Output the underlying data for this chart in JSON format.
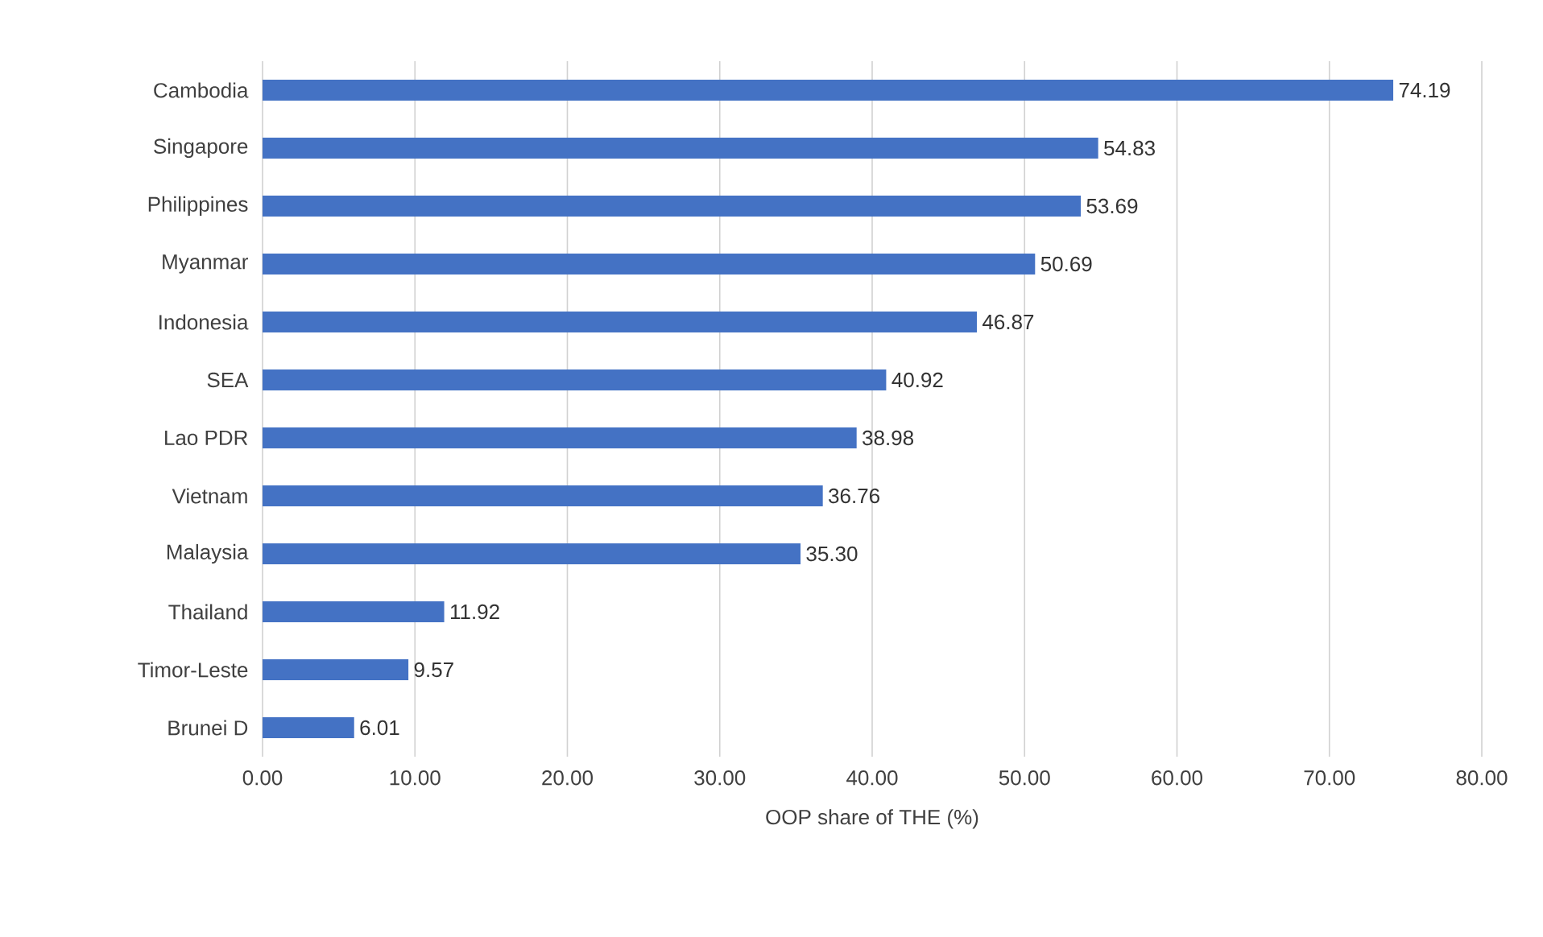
{
  "chart_data": {
    "type": "bar",
    "orientation": "horizontal",
    "xlabel": "OOP share of THE (%)",
    "categories": [
      "Cambodia",
      "Singapore",
      "Philippines",
      "Myanmar",
      "Indonesia",
      "SEA",
      "Lao PDR",
      "Vietnam",
      "Malaysia",
      "Thailand",
      "Timor-Leste",
      "Brunei D"
    ],
    "values": [
      74.19,
      54.83,
      53.69,
      50.69,
      46.87,
      40.92,
      38.98,
      36.76,
      35.3,
      11.92,
      9.57,
      6.01
    ],
    "value_labels": [
      "74.19",
      "54.83",
      "53.69",
      "50.69",
      "46.87",
      "40.92",
      "38.98",
      "36.76",
      "35.30",
      "11.92",
      "9.57",
      "6.01"
    ],
    "color": "#4472c4",
    "xlim": [
      0,
      80
    ],
    "xticks": [
      {
        "value": 0,
        "label": "0.00"
      },
      {
        "value": 10,
        "label": "10.00"
      },
      {
        "value": 20,
        "label": "20.00"
      },
      {
        "value": 30,
        "label": "30.00"
      },
      {
        "value": 40,
        "label": "40.00"
      },
      {
        "value": 50,
        "label": "50.00"
      },
      {
        "value": 60,
        "label": "60.00"
      },
      {
        "value": 70,
        "label": "70.00"
      },
      {
        "value": 80,
        "label": "80.00"
      }
    ],
    "grid": "x"
  }
}
